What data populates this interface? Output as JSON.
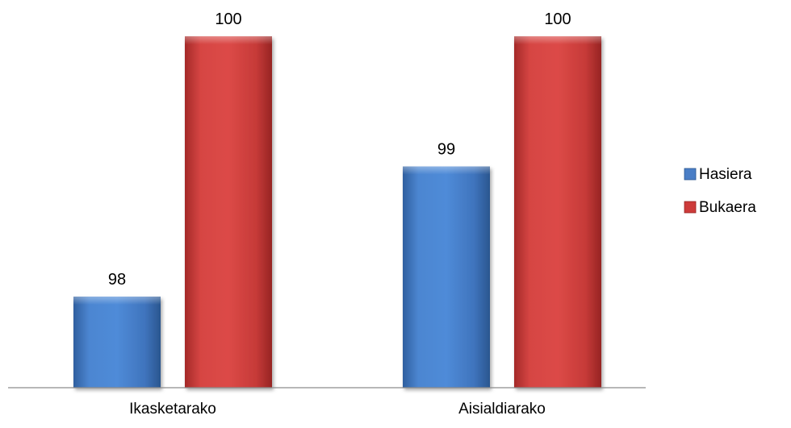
{
  "chart_data": {
    "type": "bar",
    "categories": [
      "Ikasketarako",
      "Aisialdiarako"
    ],
    "series": [
      {
        "name": "Hasiera",
        "values": [
          98,
          99
        ],
        "color": "#4A7EC6"
      },
      {
        "name": "Bukaera",
        "values": [
          100,
          100
        ],
        "color": "#CD3B3A"
      }
    ],
    "ylim": [
      97.3,
      100
    ],
    "grid": false,
    "legend_position": "right",
    "data_labels": true
  }
}
